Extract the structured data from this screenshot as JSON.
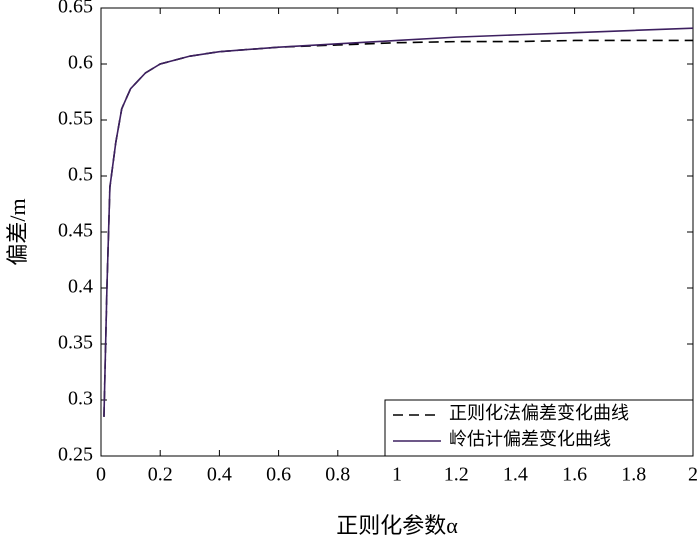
{
  "chart_data": {
    "type": "line",
    "xlabel": "正则化参数α",
    "ylabel": "偏差/m",
    "x": [
      0.01,
      0.02,
      0.03,
      0.05,
      0.07,
      0.1,
      0.15,
      0.2,
      0.3,
      0.4,
      0.6,
      0.8,
      1.0,
      1.2,
      1.4,
      1.6,
      1.8,
      2.0
    ],
    "series": [
      {
        "name": "正则化法偏差变化曲线",
        "color": "#000000",
        "linestyle": "dashed",
        "values": [
          0.285,
          0.4,
          0.49,
          0.53,
          0.56,
          0.578,
          0.592,
          0.6,
          0.607,
          0.611,
          0.615,
          0.617,
          0.619,
          0.62,
          0.62,
          0.621,
          0.621,
          0.621
        ]
      },
      {
        "name": "岭估计偏差变化曲线",
        "color": "#3d2060",
        "linestyle": "solid",
        "values": [
          0.285,
          0.4,
          0.49,
          0.53,
          0.56,
          0.578,
          0.592,
          0.6,
          0.607,
          0.611,
          0.615,
          0.618,
          0.621,
          0.624,
          0.626,
          0.628,
          0.63,
          0.632
        ]
      }
    ],
    "xlim": [
      0,
      2
    ],
    "xticks": [
      0,
      0.2,
      0.4,
      0.6,
      0.8,
      1,
      1.2,
      1.4,
      1.6,
      1.8,
      2
    ],
    "ylim": [
      0.25,
      0.65
    ],
    "yticks": [
      0.25,
      0.3,
      0.35,
      0.4,
      0.45,
      0.5,
      0.55,
      0.6,
      0.65
    ],
    "legend": "lower right"
  }
}
